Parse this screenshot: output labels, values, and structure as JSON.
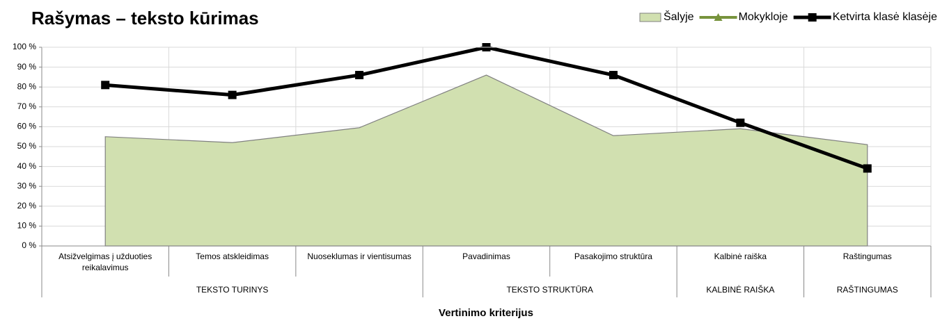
{
  "chart_data": {
    "type": "line",
    "title": "Rašymas – teksto kūrimas",
    "x_label": "Vertinimo kriterijus",
    "categories": [
      "Atsižvelgimas į užduoties reikalavimus",
      "Temos atskleidimas",
      "Nuoseklumas ir vientisumas",
      "Pavadinimas",
      "Pasakojimo struktūra",
      "Kalbinė raiška",
      "Raštingumas"
    ],
    "category_groups": [
      "TEKSTO TURINYS",
      null,
      null,
      "TEKSTO STRUKTŪRA",
      null,
      "KALBINĖ RAIŠKA",
      "RAŠTINGUMAS"
    ],
    "series": [
      {
        "name": "Šalyje",
        "type": "area",
        "color": "#d1e0b0",
        "values": [
          55,
          52,
          59.5,
          86,
          55.5,
          59,
          51
        ]
      },
      {
        "name": "Mokykloje",
        "type": "line",
        "marker": "triangle",
        "color": "#77933c",
        "values": [
          81,
          76,
          86,
          100,
          86,
          62,
          39
        ]
      },
      {
        "name": "Ketvirta klasė klasėje",
        "type": "line",
        "marker": "square",
        "color": "#000000",
        "values": [
          81,
          76,
          86,
          100,
          86,
          62,
          39
        ]
      }
    ],
    "ylim": [
      0,
      100
    ],
    "yticks": [
      {
        "value": 0,
        "label": "0 %"
      },
      {
        "value": 10,
        "label": "10 %"
      },
      {
        "value": 20,
        "label": "20 %"
      },
      {
        "value": 30,
        "label": "30 %"
      },
      {
        "value": 40,
        "label": "40 %"
      },
      {
        "value": 50,
        "label": "50 %"
      },
      {
        "value": 60,
        "label": "60 %"
      },
      {
        "value": 70,
        "label": "70 %"
      },
      {
        "value": 80,
        "label": "80 %"
      },
      {
        "value": 90,
        "label": "90 %"
      },
      {
        "value": 100,
        "label": "100 %"
      }
    ],
    "grid": true,
    "legend": "top-right"
  }
}
